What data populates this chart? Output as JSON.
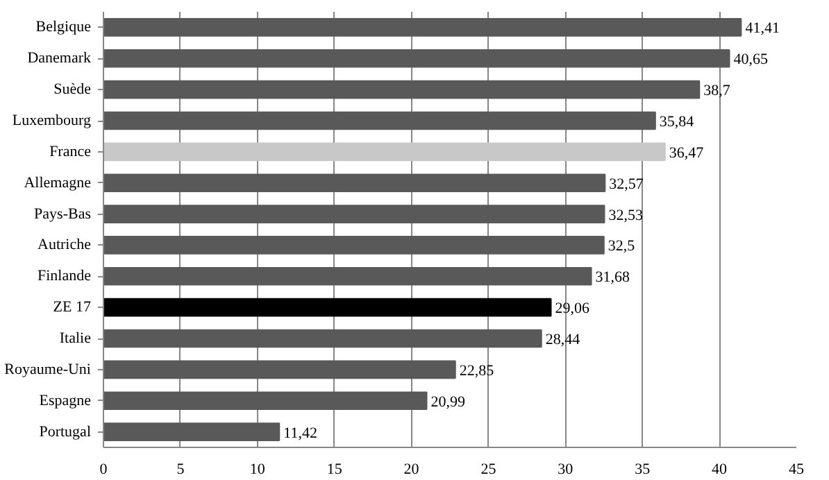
{
  "chart_data": {
    "type": "bar",
    "orientation": "horizontal",
    "categories": [
      "Belgique",
      "Danemark",
      "Suède",
      "Luxembourg",
      "France",
      "Allemagne",
      "Pays-Bas",
      "Autriche",
      "Finlande",
      "ZE 17",
      "Italie",
      "Royaume-Uni",
      "Espagne",
      "Portugal"
    ],
    "values": [
      41.41,
      40.65,
      38.7,
      35.84,
      36.47,
      32.57,
      32.53,
      32.5,
      31.68,
      29.06,
      28.44,
      22.85,
      20.99,
      11.42
    ],
    "colors": [
      "#595959",
      "#595959",
      "#595959",
      "#595959",
      "#c8c8c8",
      "#595959",
      "#595959",
      "#595959",
      "#595959",
      "#000000",
      "#595959",
      "#595959",
      "#595959",
      "#595959"
    ],
    "value_labels": [
      "41,41",
      "40,65",
      "38,7",
      "35,84",
      "36,47",
      "32,57",
      "32,53",
      "32,5",
      "31,68",
      "29,06",
      "28,44",
      "22,85",
      "20,99",
      "11,42"
    ],
    "xlim": [
      0,
      45
    ],
    "xticks": [
      0,
      5,
      10,
      15,
      20,
      25,
      30,
      35,
      40,
      45
    ],
    "grid": "x"
  }
}
